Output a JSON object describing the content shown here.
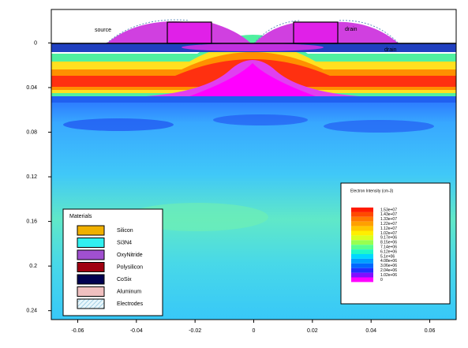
{
  "chart_data": {
    "type": "contour",
    "xlim": [
      -0.069,
      0.069
    ],
    "ylim": [
      -0.03,
      0.248
    ],
    "y_inverted": true,
    "xticks": [
      -0.06,
      -0.04,
      -0.02,
      0,
      0.02,
      0.04,
      0.06
    ],
    "yticks": [
      0,
      0.04,
      0.08,
      0.12,
      0.16,
      0.2,
      0.24
    ],
    "annotations": [
      "source",
      "drain",
      "drain"
    ],
    "materials_legend": {
      "title": "Materials",
      "items": [
        {
          "name": "Silicon",
          "color": "#f0b000"
        },
        {
          "name": "Si3N4",
          "color": "#30f0f0"
        },
        {
          "name": "OxyNitride",
          "color": "#a050d0"
        },
        {
          "name": "Polysilicon",
          "color": "#a00010"
        },
        {
          "name": "CoSix",
          "color": "#000050"
        },
        {
          "name": "Aluminum",
          "color": "#f0c0c0"
        },
        {
          "name": "Electrodes",
          "color": "#b0e0f0"
        }
      ]
    },
    "colorbar": {
      "title": "Electron Intensity (cm-3)",
      "levels": [
        {
          "value": 15300000,
          "label": "1.53e+07"
        },
        {
          "value": 14300000,
          "label": "1.43e+07"
        },
        {
          "value": 13300000,
          "label": "1.33e+07"
        },
        {
          "value": 12200000,
          "label": "1.22e+07"
        },
        {
          "value": 11200000,
          "label": "1.12e+07"
        },
        {
          "value": 10200000,
          "label": "1.02e+07"
        },
        {
          "value": 9170000,
          "label": "9.17e+06"
        },
        {
          "value": 8150000,
          "label": "8.15e+06"
        },
        {
          "value": 7140000,
          "label": "7.14e+06"
        },
        {
          "value": 6120000,
          "label": "6.12e+06"
        },
        {
          "value": 5100000,
          "label": "5.1e+06"
        },
        {
          "value": 4080000,
          "label": "4.08e+06"
        },
        {
          "value": 3060000,
          "label": "3.06e+06"
        },
        {
          "value": 2040000,
          "label": "2.04e+06"
        },
        {
          "value": 1020000,
          "label": "1.02e+06"
        },
        {
          "value": 0,
          "label": "0"
        }
      ],
      "colors": [
        "#ff1a00",
        "#ff4a00",
        "#ff7a00",
        "#ffa000",
        "#ffc800",
        "#ffee00",
        "#d8ff20",
        "#98ff50",
        "#58ff90",
        "#20f8c8",
        "#00d8ff",
        "#00a0ff",
        "#0068ff",
        "#2030ff",
        "#8010ff",
        "#ff00ff"
      ]
    }
  }
}
